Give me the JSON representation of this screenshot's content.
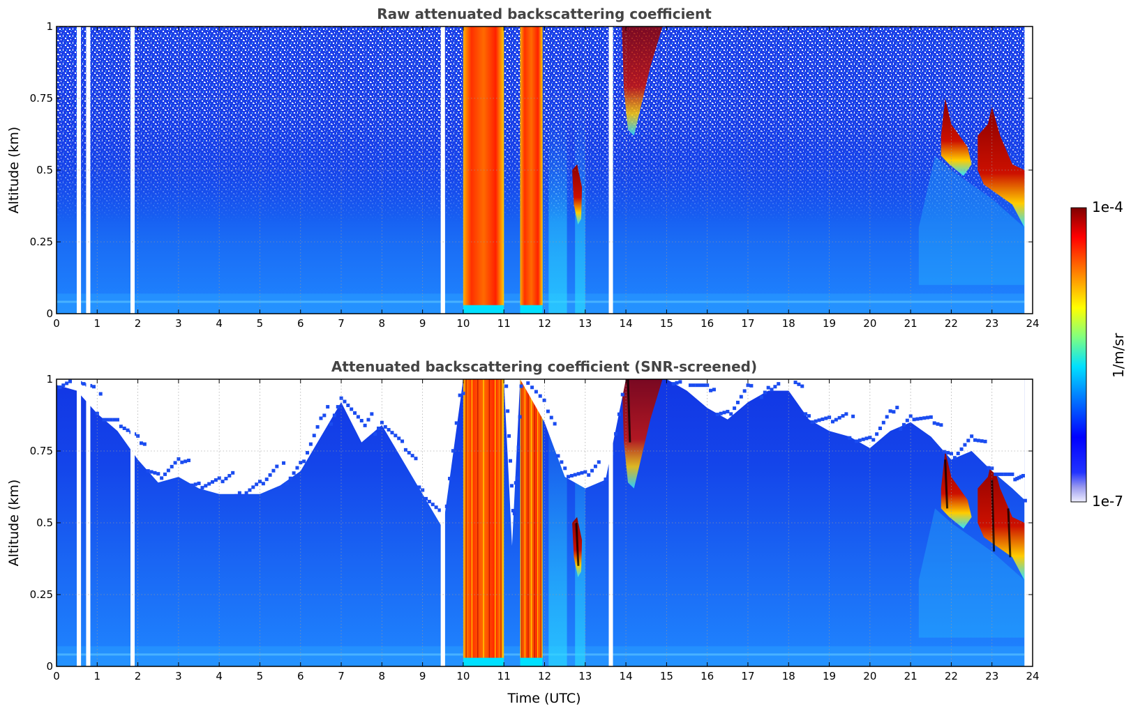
{
  "chart_data": [
    {
      "type": "heatmap",
      "title": "Raw attenuated backscattering coefficient",
      "xlabel": "",
      "ylabel": "Altitude (km)",
      "xlim": [
        0,
        24
      ],
      "ylim": [
        0,
        1
      ],
      "x_ticks": [
        "0",
        "1",
        "2",
        "3",
        "4",
        "5",
        "6",
        "7",
        "8",
        "9",
        "10",
        "11",
        "12",
        "13",
        "14",
        "15",
        "16",
        "17",
        "18",
        "19",
        "20",
        "21",
        "22",
        "23",
        "24"
      ],
      "y_ticks": [
        "0",
        "0.25",
        "0.5",
        "0.75",
        "1"
      ],
      "grid": true,
      "colorscale": "jet",
      "value_range": [
        "1e-7",
        "1e-4"
      ],
      "data_gaps_utc": [
        0.55,
        0.78,
        1.87,
        9.5,
        13.63
      ],
      "features": [
        {
          "x_start": 10.0,
          "x_end": 11.0,
          "y_top": 1.0,
          "level": "high"
        },
        {
          "x_start": 11.4,
          "x_end": 11.95,
          "y_top": 1.0,
          "level": "high"
        },
        {
          "x_start": 12.65,
          "x_end": 12.95,
          "y_top": 0.5,
          "level": "high"
        },
        {
          "x_start": 13.9,
          "x_end": 14.9,
          "y_top": 1.0,
          "level": "high"
        },
        {
          "x_start": 21.75,
          "x_end": 22.5,
          "y_top": 0.75,
          "level": "high"
        },
        {
          "x_start": 22.6,
          "x_end": 23.8,
          "y_top": 0.72,
          "level": "high"
        }
      ]
    },
    {
      "type": "heatmap",
      "title": "Attenuated backscattering coefficient (SNR-screened)",
      "xlabel": "Time (UTC)",
      "ylabel": "Altitude (km)",
      "xlim": [
        0,
        24
      ],
      "ylim": [
        0,
        1
      ],
      "x_ticks": [
        "0",
        "1",
        "2",
        "3",
        "4",
        "5",
        "6",
        "7",
        "8",
        "9",
        "10",
        "11",
        "12",
        "13",
        "14",
        "15",
        "16",
        "17",
        "18",
        "19",
        "20",
        "21",
        "22",
        "23",
        "24"
      ],
      "y_ticks": [
        "0",
        "0.25",
        "0.5",
        "0.75",
        "1"
      ],
      "grid": true,
      "colorscale": "jet",
      "value_range": [
        "1e-7",
        "1e-4"
      ],
      "data_gaps_utc": [
        0.55,
        0.78,
        1.87,
        9.5,
        13.63
      ],
      "screened_top_km": [
        [
          0.0,
          0.98
        ],
        [
          0.5,
          0.96
        ],
        [
          1.0,
          0.88
        ],
        [
          1.5,
          0.82
        ],
        [
          2.0,
          0.72
        ],
        [
          2.5,
          0.64
        ],
        [
          3.0,
          0.66
        ],
        [
          3.5,
          0.62
        ],
        [
          4.0,
          0.6
        ],
        [
          4.5,
          0.6
        ],
        [
          5.0,
          0.6
        ],
        [
          5.5,
          0.63
        ],
        [
          6.0,
          0.68
        ],
        [
          6.5,
          0.8
        ],
        [
          7.0,
          0.92
        ],
        [
          7.5,
          0.78
        ],
        [
          8.0,
          0.84
        ],
        [
          8.5,
          0.72
        ],
        [
          9.0,
          0.6
        ],
        [
          9.5,
          0.48
        ],
        [
          10.0,
          1.0
        ],
        [
          11.0,
          1.0
        ],
        [
          11.2,
          0.42
        ],
        [
          11.4,
          1.0
        ],
        [
          12.0,
          0.85
        ],
        [
          12.5,
          0.66
        ],
        [
          13.0,
          0.62
        ],
        [
          13.5,
          0.65
        ],
        [
          14.0,
          1.0
        ],
        [
          15.0,
          1.0
        ],
        [
          15.5,
          0.96
        ],
        [
          16.0,
          0.9
        ],
        [
          16.5,
          0.86
        ],
        [
          17.0,
          0.92
        ],
        [
          17.5,
          0.96
        ],
        [
          18.0,
          0.96
        ],
        [
          18.5,
          0.86
        ],
        [
          19.0,
          0.82
        ],
        [
          19.5,
          0.8
        ],
        [
          20.0,
          0.76
        ],
        [
          20.5,
          0.82
        ],
        [
          21.0,
          0.85
        ],
        [
          21.5,
          0.8
        ],
        [
          22.0,
          0.72
        ],
        [
          22.5,
          0.75
        ],
        [
          23.0,
          0.68
        ],
        [
          23.5,
          0.62
        ],
        [
          23.8,
          0.58
        ]
      ]
    }
  ],
  "colorbar": {
    "label": "1/m/sr",
    "max_label": "1e-4",
    "min_label": "1e-7"
  }
}
